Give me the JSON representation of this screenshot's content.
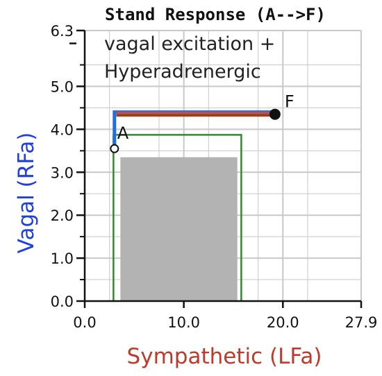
{
  "chart_data": {
    "type": "line",
    "title": "Stand Response (A-->F)",
    "annotation_lines": [
      "vagal excitation +",
      "Hyperadrenergic"
    ],
    "xlabel": "Sympathetic (LFa)",
    "ylabel": "Vagal (RFa)",
    "xlim": [
      0,
      27.9
    ],
    "ylim": [
      0,
      6.3
    ],
    "x_ticks": [
      "0.0",
      "10.0",
      "20.0",
      "27.9"
    ],
    "x_tick_values": [
      0,
      10,
      20,
      27.9
    ],
    "y_ticks": [
      "0.0",
      "1.0",
      "2.0",
      "3.0",
      "4.0",
      "5.0",
      "6.3"
    ],
    "y_tick_values": [
      0,
      1,
      2,
      3,
      4,
      5,
      6.3
    ],
    "grid": true,
    "points": [
      {
        "label": "A",
        "x": 3.0,
        "y": 3.55,
        "marker": "open-circle"
      },
      {
        "label": "F",
        "x": 19.2,
        "y": 4.35,
        "marker": "filled-circle"
      }
    ],
    "region_gray": {
      "x": [
        3.6,
        15.4
      ],
      "y": [
        0,
        3.35
      ],
      "color": "#b3b3b3"
    },
    "region_green": {
      "x": [
        2.9,
        15.8
      ],
      "y": [
        0,
        3.87
      ],
      "color": "#2e8b2e"
    },
    "path_blue": {
      "points": [
        [
          3.0,
          3.6
        ],
        [
          3.0,
          4.4
        ],
        [
          19.2,
          4.4
        ]
      ],
      "color": "#1f6fe0"
    },
    "path_red": {
      "points": [
        [
          3.2,
          4.35
        ],
        [
          19.2,
          4.35
        ]
      ],
      "color": "#d04848"
    },
    "path_brown": {
      "points": [
        [
          3.2,
          4.33
        ],
        [
          19.2,
          4.33
        ]
      ],
      "color": "#8b4513"
    },
    "colors": {
      "xlabel": "#c0392b",
      "ylabel": "#1f3fe0",
      "grid": "#c8c8c8",
      "axis": "#111111"
    }
  }
}
